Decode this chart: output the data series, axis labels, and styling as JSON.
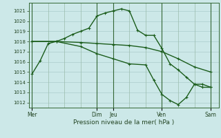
{
  "background_color": "#cce8e8",
  "grid_major_color": "#aacccc",
  "grid_minor_color": "#bbdddd",
  "line_color": "#1a5c1a",
  "xlabel": "Pression niveau de la mer( hPa )",
  "ylim": [
    1011.5,
    1021.8
  ],
  "yticks": [
    1012,
    1013,
    1014,
    1015,
    1016,
    1017,
    1018,
    1019,
    1020,
    1021
  ],
  "day_labels": [
    "Mer",
    "Dim",
    "Jeu",
    "Ven",
    "Sam"
  ],
  "day_positions": [
    0,
    4,
    5,
    8,
    11
  ],
  "xlim": [
    -0.2,
    11.5
  ],
  "lines": [
    {
      "x": [
        0,
        0.5,
        1.0,
        1.5,
        2.0,
        2.5,
        3.0,
        3.5,
        4.0,
        4.5,
        5.0,
        5.5,
        6.0,
        6.5,
        7.0,
        7.5,
        8.0,
        8.5,
        9.0,
        9.5,
        10.0,
        10.5,
        11.0
      ],
      "y": [
        1014.8,
        1016.1,
        1017.8,
        1018.0,
        1018.3,
        1018.7,
        1019.0,
        1019.3,
        1020.5,
        1020.8,
        1021.0,
        1021.2,
        1021.0,
        1019.1,
        1018.6,
        1018.6,
        1017.3,
        1015.8,
        1015.2,
        1014.5,
        1013.8,
        1013.5,
        1013.5
      ]
    },
    {
      "x": [
        0,
        1.5,
        3.0,
        4.0,
        5.0,
        6.0,
        7.0,
        8.0,
        9.0,
        10.0,
        11.0
      ],
      "y": [
        1018.0,
        1018.0,
        1017.9,
        1017.8,
        1017.7,
        1017.6,
        1017.4,
        1017.0,
        1016.3,
        1015.5,
        1015.0
      ]
    },
    {
      "x": [
        0,
        1.5,
        3.0,
        4.0,
        5.0,
        6.0,
        7.0,
        7.5,
        8.0,
        8.5,
        9.0,
        9.5,
        10.0,
        10.5,
        11.0
      ],
      "y": [
        1018.0,
        1018.0,
        1017.5,
        1016.8,
        1016.3,
        1015.8,
        1015.7,
        1014.2,
        1012.8,
        1012.2,
        1011.8,
        1012.5,
        1013.8,
        1013.8,
        1013.5
      ]
    }
  ],
  "vline_positions": [
    0,
    4,
    5,
    8,
    11
  ],
  "vline_color": "#336633",
  "minor_vline_positions": [
    1,
    2,
    3,
    6,
    7,
    9,
    10
  ],
  "minor_vline_color": "#99bbaa"
}
